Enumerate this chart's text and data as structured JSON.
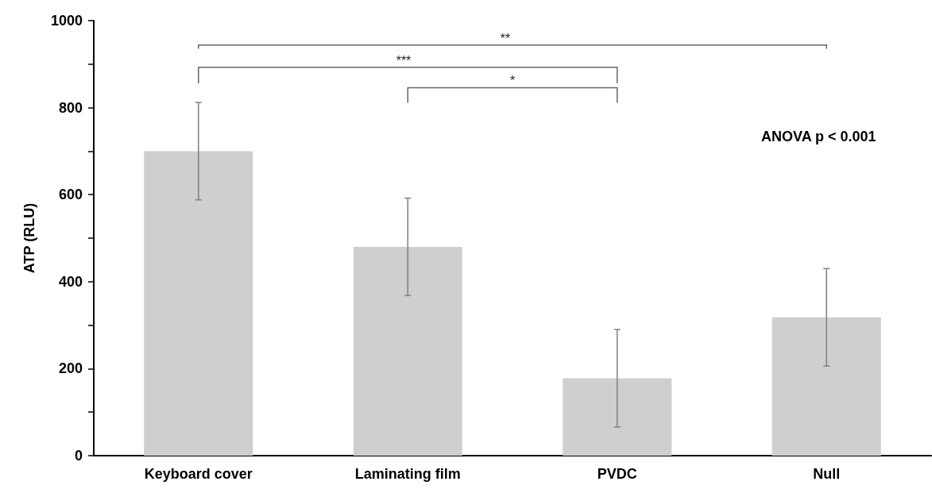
{
  "chart_data": {
    "type": "bar",
    "ylabel": "ATP (RLU)",
    "categories": [
      "Keyboard cover",
      "Laminating film",
      "PVDC",
      "Null"
    ],
    "values": [
      700,
      480,
      178,
      318
    ],
    "errors": [
      112,
      112,
      112,
      112
    ],
    "color": "#d0cecf",
    "ylim": [
      0,
      1000
    ],
    "yticks": [
      0,
      200,
      400,
      600,
      800,
      1000
    ],
    "grid": false,
    "annotations": [
      "**",
      "***",
      "*",
      "ANOVA p < 0.001"
    ]
  }
}
